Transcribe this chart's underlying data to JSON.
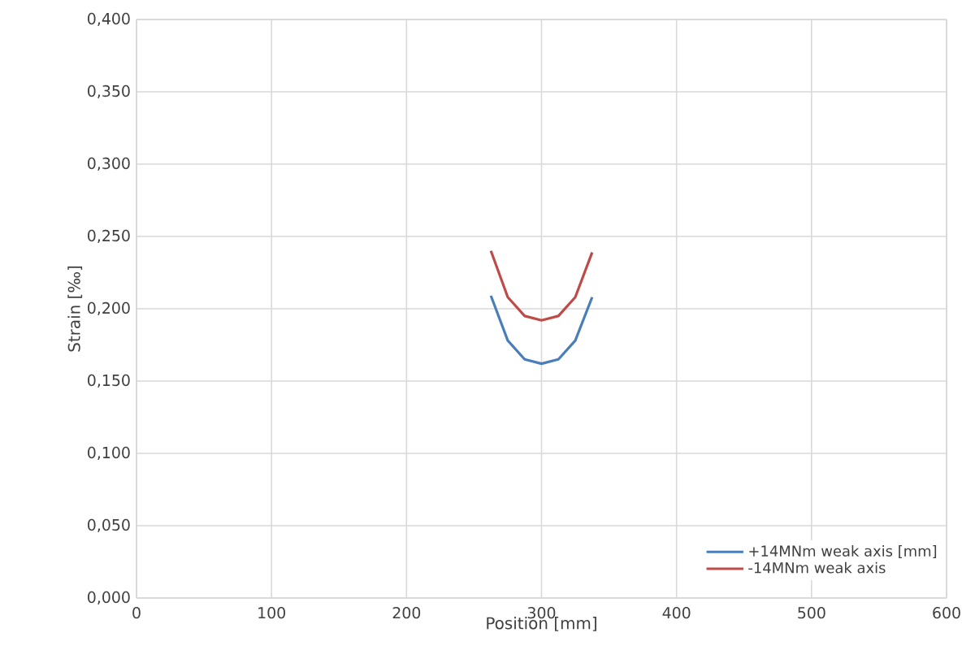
{
  "chart_data": {
    "type": "line",
    "xlabel": "Position [mm]",
    "ylabel": "Strain [‰]",
    "series": [
      {
        "name": "+14MNm weak axis [mm]",
        "color": "#4a7ebb",
        "x": [
          262.5,
          275,
          287.5,
          300,
          312.5,
          325,
          337.5
        ],
        "values": [
          0.209,
          0.178,
          0.165,
          0.162,
          0.165,
          0.178,
          0.208
        ]
      },
      {
        "name": "-14MNm weak axis",
        "color": "#be4b48",
        "x": [
          262.5,
          275,
          287.5,
          300,
          312.5,
          325,
          337.5
        ],
        "values": [
          0.24,
          0.208,
          0.195,
          0.192,
          0.195,
          0.208,
          0.239
        ]
      }
    ],
    "xlim": [
      0,
      600
    ],
    "xticks": [
      0,
      100,
      200,
      300,
      400,
      500,
      600
    ],
    "ylim": [
      0,
      0.4
    ],
    "yticks": [
      {
        "value": 0,
        "label": "0,000"
      },
      {
        "value": 0.05,
        "label": "0,050"
      },
      {
        "value": 0.1,
        "label": "0,100"
      },
      {
        "value": 0.15,
        "label": "0,150"
      },
      {
        "value": 0.2,
        "label": "0,200"
      },
      {
        "value": 0.25,
        "label": "0,250"
      },
      {
        "value": 0.3,
        "label": "0,300"
      },
      {
        "value": 0.35,
        "label": "0,350"
      },
      {
        "value": 0.4,
        "label": "0,400"
      }
    ],
    "grid": true,
    "legend": "bottom right",
    "marker": "none",
    "line_style": "solid"
  }
}
